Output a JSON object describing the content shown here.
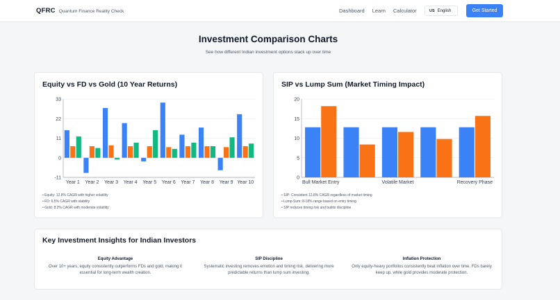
{
  "header": {
    "logo": "QFRC",
    "brand_name": "Quantum Finance Reality Check",
    "nav": [
      "Dashboard",
      "Learn",
      "Calculator"
    ],
    "language": {
      "flag": "US",
      "label": "English"
    },
    "cta": "Get Started"
  },
  "hero": {
    "title": "Investment Comparison Charts",
    "subtitle": "See how different Indian investment options stack up over time"
  },
  "cards": {
    "left": {
      "title": "Equity vs FD vs Gold (10 Year Returns)",
      "notes": [
        "Equity: 12.8% CAGR with higher volatility",
        "FD: 6.5% CAGR with stability",
        "Gold: 8.2% CAGR with moderate volatility"
      ]
    },
    "right": {
      "title": "SIP vs Lump Sum (Market Timing Impact)",
      "notes": [
        "SIP: Consistent 12.8% CAGR regardless of market timing",
        "Lump Sum: 8-18% range based on entry timing",
        "SIP reduces timing risk and builds discipline"
      ]
    }
  },
  "insights": {
    "title": "Key Investment Insights for Indian Investors",
    "items": [
      {
        "heading": "Equity Advantage",
        "text": "Over 10+ years, equity consistently outperforms FDs and gold, making it essential for long-term wealth creation."
      },
      {
        "heading": "SIP Discipline",
        "text": "Systematic investing removes emotion and timing risk, delivering more predictable returns than lump sum investing."
      },
      {
        "heading": "Inflation Protection",
        "text": "Only equity-heavy portfolios consistently beat inflation over time. FDs barely keep up, while gold provides moderate protection."
      }
    ]
  },
  "colors": {
    "equity": "#3b82f6",
    "fd": "#f97316",
    "gold": "#10b981",
    "accent": "#3b82f6"
  },
  "chart_data": [
    {
      "type": "bar",
      "title": "Equity vs FD vs Gold (10 Year Returns)",
      "categories": [
        "Year 1",
        "Year 2",
        "Year 3",
        "Year 4",
        "Year 5",
        "Year 6",
        "Year 7",
        "Year 8",
        "Year 9",
        "Year 10"
      ],
      "series": [
        {
          "values": [
            15.5,
            -8.5,
            28,
            19.5,
            -2,
            31,
            13,
            17,
            -7,
            24.5
          ],
          "color": "#3b82f6"
        },
        {
          "values": [
            6.5,
            6.5,
            7,
            6.5,
            6.5,
            6,
            6.5,
            6.5,
            6,
            6.5
          ],
          "color": "#f97316"
        },
        {
          "values": [
            12,
            5.5,
            -1,
            8.5,
            15.5,
            5,
            8.5,
            6.5,
            11.5,
            8
          ],
          "color": "#10b981"
        }
      ],
      "ylim": [
        -11,
        33
      ],
      "yticks": [
        -11,
        0,
        11,
        22,
        33
      ],
      "grid": true
    },
    {
      "type": "bar",
      "title": "SIP vs Lump Sum (Market Timing Impact)",
      "categories": [
        "Bull Market Entry",
        "",
        "Volatile Market",
        "",
        "Recovery Phase"
      ],
      "series": [
        {
          "values": [
            12.8,
            12.8,
            12.8,
            12.8,
            12.8
          ],
          "color": "#3b82f6"
        },
        {
          "values": [
            18.2,
            8.4,
            11.6,
            9.8,
            15.7
          ],
          "color": "#f97316"
        }
      ],
      "ylim": [
        0,
        20
      ],
      "yticks": [
        0,
        5,
        10,
        15,
        20
      ],
      "grid": true
    }
  ]
}
